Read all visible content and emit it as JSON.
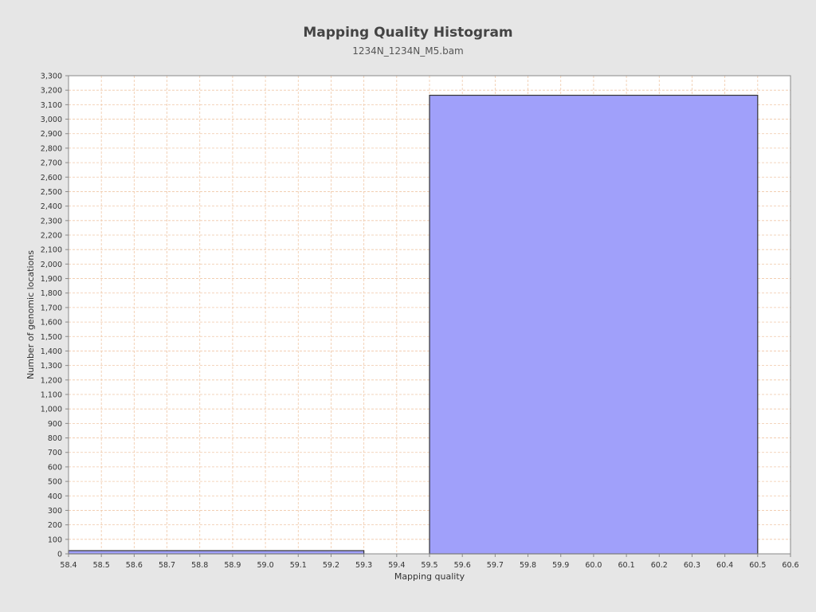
{
  "chart_data": {
    "type": "bar",
    "title": "Mapping Quality Histogram",
    "subtitle": "1234N_1234N_M5.bam",
    "xlabel": "Mapping quality",
    "ylabel": "Number of genomic locations",
    "xlim": [
      58.4,
      60.6
    ],
    "ylim": [
      0,
      3300
    ],
    "xtick_step": 0.1,
    "ytick_step": 100,
    "grid": true,
    "legend": "none",
    "bars": [
      {
        "x_start": 58.4,
        "x_end": 59.3,
        "value": 22
      },
      {
        "x_start": 59.5,
        "x_end": 60.5,
        "value": 3165
      }
    ],
    "colors": {
      "bar_fill": "#a0a0fa",
      "bar_edge": "#333333",
      "grid": "#f0c8a8",
      "plot_bg": "#ffffff",
      "page_bg": "#e6e6e6"
    }
  }
}
